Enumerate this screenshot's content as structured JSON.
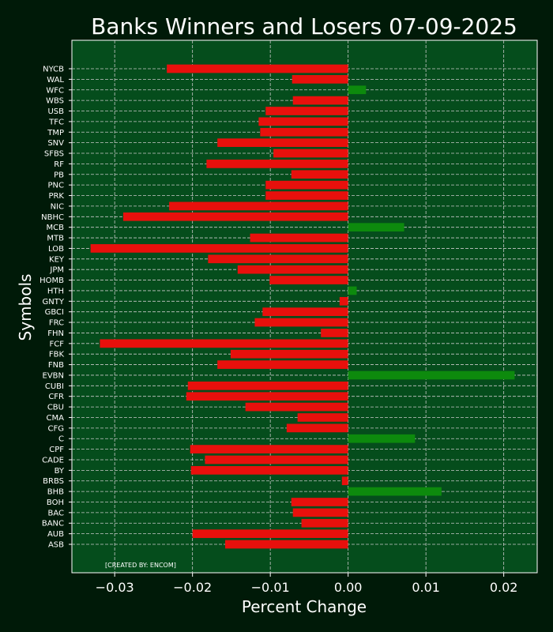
{
  "chart_data": {
    "type": "bar",
    "orientation": "horizontal",
    "title": "Banks Winners and Losers 07-09-2025",
    "xlabel": "Percent Change",
    "ylabel": "Symbols",
    "xlim": [
      -0.0355,
      0.0243
    ],
    "xticks": [
      -0.03,
      -0.02,
      -0.01,
      0.0,
      0.01,
      0.02
    ],
    "xtick_labels": [
      "−0.03",
      "−0.02",
      "−0.01",
      "0.00",
      "0.01",
      "0.02"
    ],
    "grid": true,
    "credit": "[CREATED BY: ENCOM]",
    "colors": {
      "background": "#001a08",
      "plot_background": "#054d1c",
      "negative": "#e8100c",
      "positive": "#0d8a0d",
      "grid": "#c8c8c8",
      "text": "#ffffff"
    },
    "categories": [
      "ASB",
      "AUB",
      "BANC",
      "BAC",
      "BOH",
      "BHB",
      "BRBS",
      "BY",
      "CADE",
      "CPF",
      "C",
      "CFG",
      "CMA",
      "CBU",
      "CFR",
      "CUBI",
      "EVBN",
      "FNB",
      "FBK",
      "FCF",
      "FHN",
      "FRC",
      "GBCI",
      "GNTY",
      "HTH",
      "HOMB",
      "JPM",
      "KEY",
      "LOB",
      "MTB",
      "MCB",
      "NBHC",
      "NIC",
      "PRK",
      "PNC",
      "PB",
      "RF",
      "SFBS",
      "SNV",
      "TMP",
      "TFC",
      "USB",
      "WBS",
      "WFC",
      "WAL",
      "NYCB"
    ],
    "values": [
      -0.0158,
      -0.02,
      -0.006,
      -0.0071,
      -0.0073,
      0.012,
      -0.0008,
      -0.0202,
      -0.0184,
      -0.0203,
      0.0086,
      -0.0079,
      -0.0065,
      -0.0132,
      -0.0208,
      -0.0206,
      0.0214,
      -0.0168,
      -0.0151,
      -0.0319,
      -0.0035,
      -0.012,
      -0.011,
      -0.0011,
      0.0011,
      -0.0101,
      -0.0142,
      -0.018,
      -0.0331,
      -0.0126,
      0.0072,
      -0.0289,
      -0.023,
      -0.0106,
      -0.0106,
      -0.0073,
      -0.0182,
      -0.0096,
      -0.0168,
      -0.0113,
      -0.0115,
      -0.0106,
      -0.0071,
      0.0023,
      -0.0072,
      -0.0233
    ]
  }
}
